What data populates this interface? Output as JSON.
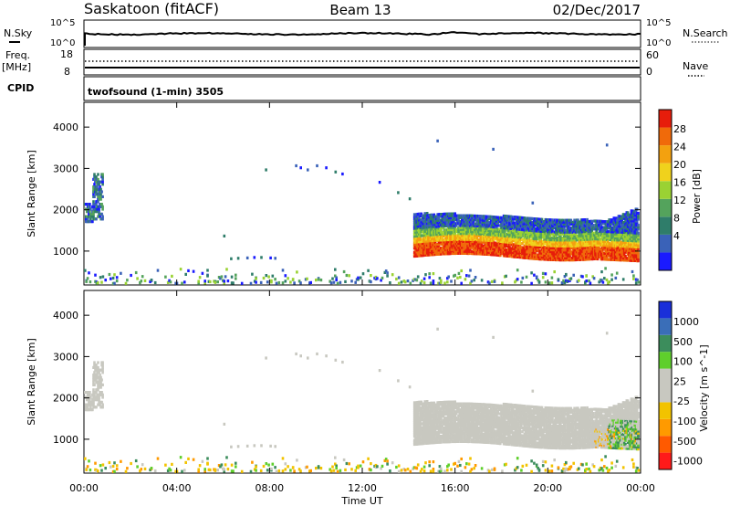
{
  "header": {
    "station": "Saskatoon (fitACF)",
    "beam": "Beam 13",
    "date": "02/Dec/2017"
  },
  "noise_panel": {
    "left_label": "N.Sky",
    "right_label": "N.Search",
    "left_ticks": [
      "10^5",
      "10^0"
    ],
    "right_ticks": [
      "10^5",
      "10^0"
    ]
  },
  "freq_panel": {
    "left_label": "Freq.",
    "left_unit": "[MHz]",
    "right_label": "Nave",
    "left_ticks": [
      "18",
      "8"
    ],
    "right_ticks": [
      "60",
      "0"
    ]
  },
  "cpid": {
    "label": "CPID",
    "text": "twofsound (1-min) 3505"
  },
  "colors": {
    "power_scale": [
      "#1a1aff",
      "#3a62b8",
      "#2f7d6a",
      "#54a35c",
      "#9ad233",
      "#f0d21c",
      "#f3a10f",
      "#f06a0a",
      "#e71d0b"
    ],
    "velocity_scale": [
      "#ff1a1a",
      "#ff5a00",
      "#ff9a00",
      "#f2c300",
      "#c8c8c0",
      "#c8c8c0",
      "#5fcf2c",
      "#3c8d5c",
      "#3a6eb8",
      "#1a2fd9"
    ]
  },
  "chart_data": [
    {
      "type": "heatmap",
      "name": "power",
      "xlabel": "",
      "ylabel": "Slant Range [km]",
      "xlim": [
        0,
        24
      ],
      "ylim": [
        180,
        4600
      ],
      "yticks": [
        "4000",
        "3000",
        "2000",
        "1000"
      ],
      "colorbar": {
        "label": "Power [dB]",
        "ticks": [
          "28",
          "24",
          "20",
          "16",
          "12",
          "8",
          "4"
        ]
      },
      "features": [
        {
          "desc": "near-range ground clutter",
          "x": [
            0,
            24
          ],
          "range_km": [
            200,
            400
          ]
        },
        {
          "desc": "early scatter patch",
          "x": [
            0,
            0.8
          ],
          "range_km": [
            1700,
            2900
          ]
        },
        {
          "desc": "isolated echoes",
          "x": [
            9,
            11
          ],
          "range_km": [
            2800,
            3200
          ]
        },
        {
          "desc": "isolated echoes",
          "x": [
            6.3,
            8.3
          ],
          "range_km": [
            800,
            900
          ]
        },
        {
          "desc": "main scatter band",
          "x": [
            14.2,
            23.9
          ],
          "range_km": [
            700,
            2100
          ],
          "peak_power_db": 28
        }
      ]
    },
    {
      "type": "heatmap",
      "name": "velocity",
      "xlabel": "Time UT",
      "ylabel": "Slant Range [km]",
      "xlim": [
        0,
        24
      ],
      "ylim": [
        180,
        4600
      ],
      "xticks": [
        "00:00",
        "04:00",
        "08:00",
        "12:00",
        "16:00",
        "20:00",
        "00:00"
      ],
      "yticks": [
        "4000",
        "3000",
        "2000",
        "1000"
      ],
      "colorbar": {
        "label": "Velocity [m s^-1]",
        "ticks": [
          "1000",
          "500",
          "100",
          "25",
          "-25",
          "-100",
          "-500",
          "-1000"
        ]
      },
      "features": [
        {
          "desc": "near-range mixed low velocity",
          "x": [
            0,
            24
          ],
          "range_km": [
            200,
            400
          ]
        },
        {
          "desc": "ground scatter (grey)",
          "x": [
            14.2,
            23.9
          ],
          "range_km": [
            800,
            2100
          ],
          "velocity": [
            -25,
            25
          ]
        },
        {
          "desc": "positive velocity patch",
          "x": [
            22.5,
            23.9
          ],
          "range_km": [
            600,
            1400
          ],
          "velocity": [
            100,
            500
          ]
        }
      ]
    }
  ]
}
